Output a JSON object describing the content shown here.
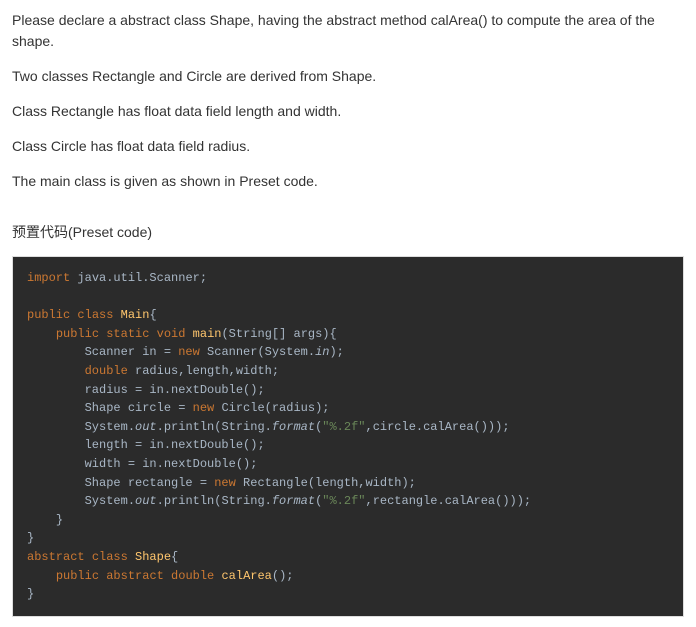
{
  "description": {
    "p1": "Please declare a abstract class Shape, having the abstract method calArea() to compute the area of the shape.",
    "p2": "Two classes Rectangle and Circle are derived from Shape.",
    "p3": "Class Rectangle has float data field length and width.",
    "p4": "Class Circle has float data field radius.",
    "p5": "The main class is given as shown in Preset code."
  },
  "preset_title": "预置代码(Preset code)",
  "code": {
    "colors": {
      "background": "#2b2b2b",
      "default_text": "#a9b7c6",
      "keyword": "#cc7832",
      "class_name": "#ffc66d",
      "method_name": "#ffc66d",
      "string": "#6a8759",
      "border": "#dddddd"
    },
    "font_size": 12,
    "tokens": {
      "import": "import",
      "pkg": "java.util.Scanner;",
      "public": "public",
      "class_kw": "class",
      "main_cls": "Main",
      "static": "static",
      "void": "void",
      "main_m": "main",
      "args": "(String[] args){",
      "scanner_decl": "Scanner in = ",
      "new": "new",
      "scanner_ctor": " Scanner(System.",
      "in_field": "in",
      "scanner_end": ");",
      "double": "double",
      "vars": " radius,length,width;",
      "radius_assign": "radius = in.nextDouble();",
      "shape_decl1": "Shape circle = ",
      "circle_ctor": " Circle(radius);",
      "sysout1_a": "System.",
      "out": "out",
      "println": ".println(String.",
      "format": "format",
      "fmt_str": "\"%.2f\"",
      "circ_area": ",circle.calArea()));",
      "len_assign": "length = in.nextDouble();",
      "wid_assign": "width = in.nextDouble();",
      "shape_decl2": "Shape rectangle = ",
      "rect_ctor": " Rectangle(length,width);",
      "rect_area": ",rectangle.calArea()));",
      "cb": "}",
      "abstract": "abstract",
      "shape_cls": "Shape",
      "ob": "{",
      "calarea": "calArea",
      "calarea_sig": "();"
    }
  }
}
